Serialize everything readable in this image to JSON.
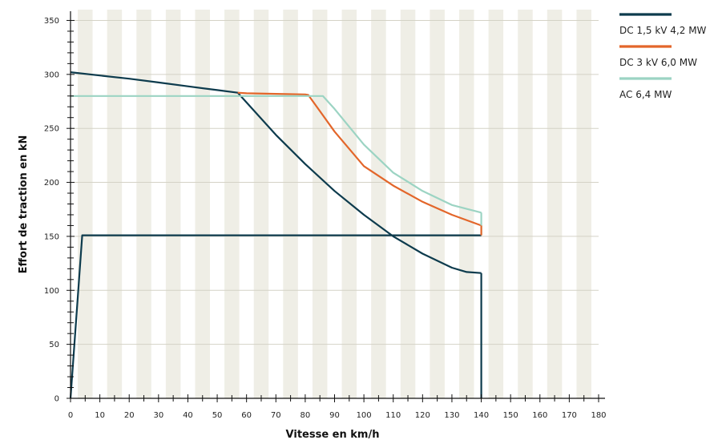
{
  "chart_data": {
    "type": "line",
    "title": "",
    "xlabel": "Vitesse en km/h",
    "ylabel": "Effort de traction en kN",
    "xlim": [
      0,
      180
    ],
    "ylim": [
      0,
      360
    ],
    "x_ticks": [
      0,
      10,
      20,
      30,
      40,
      50,
      60,
      70,
      80,
      90,
      100,
      110,
      120,
      130,
      140,
      150,
      160,
      170,
      180
    ],
    "y_ticks": [
      0,
      50,
      100,
      150,
      200,
      250,
      300,
      350
    ],
    "grid": "vertical bands and horizontal gridlines",
    "legend_position": "top-right, outside plot",
    "colors": {
      "band": "#efeee6",
      "gridline": "#d4d2c6",
      "axis": "#111111"
    },
    "series": [
      {
        "name": "DC 1,5 kV 4,2 MW",
        "color": "#0d3b4d",
        "points": [
          [
            0,
            302
          ],
          [
            10,
            299
          ],
          [
            20,
            296
          ],
          [
            30,
            292.5
          ],
          [
            40,
            289
          ],
          [
            50,
            285.5
          ],
          [
            57,
            283
          ],
          [
            60,
            274
          ],
          [
            70,
            244
          ],
          [
            80,
            217
          ],
          [
            90,
            192
          ],
          [
            100,
            170
          ],
          [
            110,
            150
          ],
          [
            120,
            134
          ],
          [
            130,
            121
          ],
          [
            135,
            117
          ],
          [
            140,
            116
          ]
        ]
      },
      {
        "name": "DC 3 kV 6,0 MW",
        "color": "#e3662a",
        "points": [
          [
            57,
            283
          ],
          [
            60,
            282.5
          ],
          [
            70,
            282
          ],
          [
            80,
            281.5
          ],
          [
            81,
            281
          ],
          [
            85,
            266
          ],
          [
            90,
            247
          ],
          [
            100,
            215
          ],
          [
            110,
            197
          ],
          [
            120,
            182
          ],
          [
            130,
            170
          ],
          [
            140,
            160
          ]
        ]
      },
      {
        "name": "AC 6,4 MW",
        "color": "#9cd4c3",
        "points": [
          [
            0,
            280
          ],
          [
            10,
            280
          ],
          [
            20,
            280
          ],
          [
            30,
            280
          ],
          [
            40,
            280
          ],
          [
            50,
            280
          ],
          [
            60,
            280
          ],
          [
            70,
            280
          ],
          [
            80,
            280
          ],
          [
            86,
            280
          ],
          [
            90,
            268
          ],
          [
            100,
            235
          ],
          [
            110,
            209
          ],
          [
            120,
            192
          ],
          [
            130,
            179
          ],
          [
            140,
            172
          ]
        ]
      },
      {
        "name": "",
        "color": "#0d3b4d",
        "points": [
          [
            0,
            0
          ],
          [
            4,
            151
          ],
          [
            140,
            151
          ]
        ]
      },
      {
        "name": "",
        "color": "#0d3b4d",
        "points": [
          [
            140,
            116
          ],
          [
            140,
            0
          ]
        ]
      },
      {
        "name": "",
        "color": "#9cd4c3",
        "points": [
          [
            140,
            172
          ],
          [
            140,
            151
          ]
        ]
      },
      {
        "name": "",
        "color": "#e3662a",
        "points": [
          [
            140,
            160
          ],
          [
            140,
            151
          ]
        ]
      }
    ]
  }
}
